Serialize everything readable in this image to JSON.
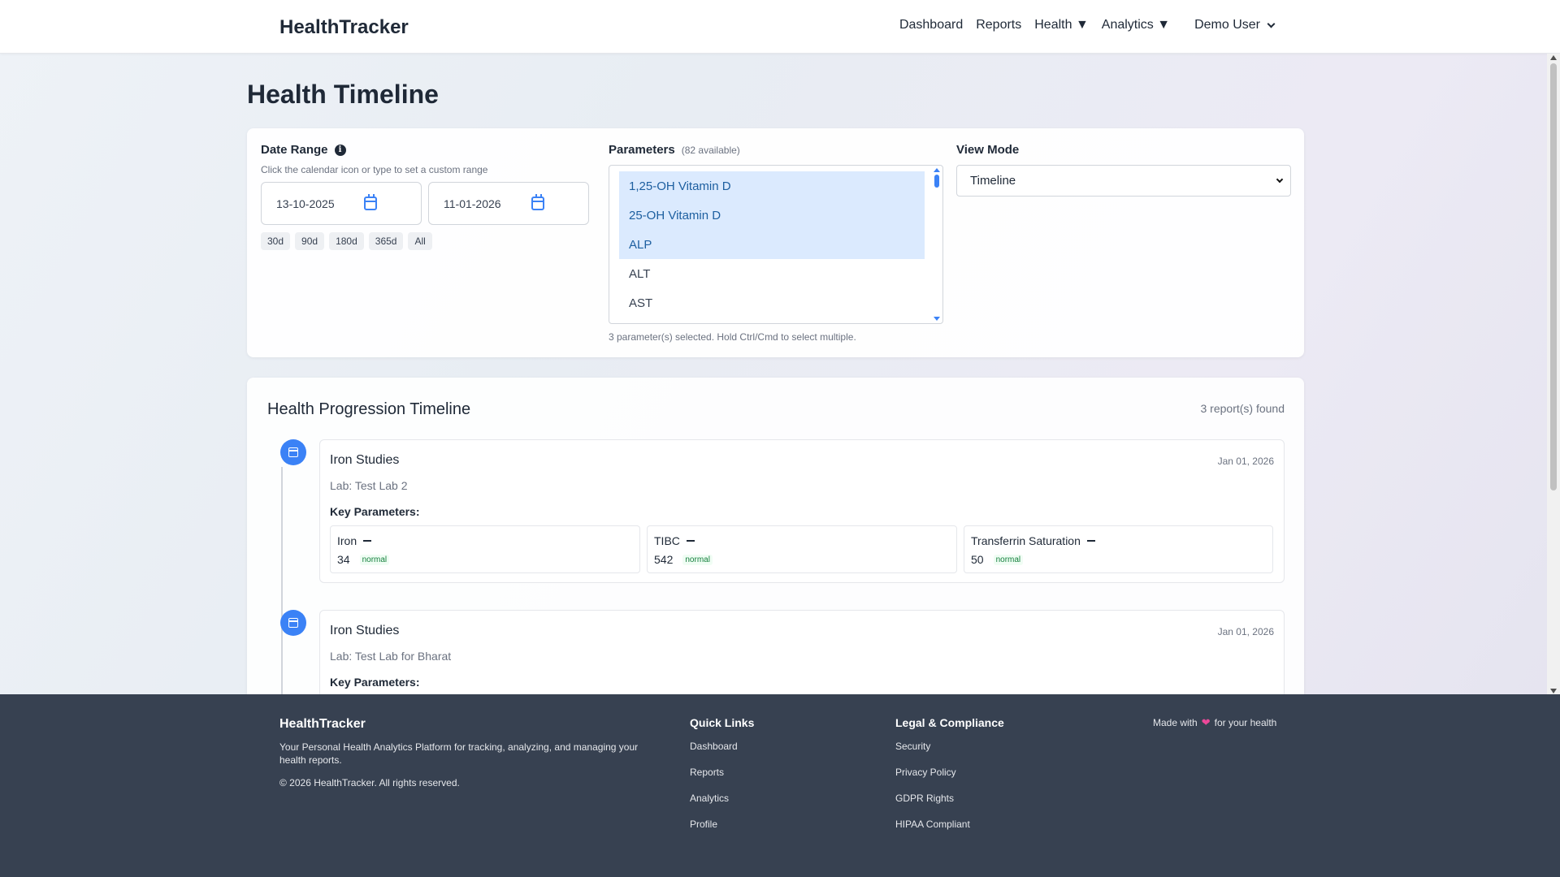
{
  "navbar": {
    "brand": "HealthTracker",
    "links": [
      {
        "label": "Dashboard"
      },
      {
        "label": "Reports"
      },
      {
        "label": "Health ▼"
      },
      {
        "label": "Analytics ▼"
      }
    ],
    "user": "Demo User"
  },
  "page_title": "Health Timeline",
  "filters": {
    "date_range": {
      "label": "Date Range",
      "hint": "Click the calendar icon or type to set a custom range",
      "start": "13-10-2025",
      "end": "11-01-2026",
      "quick": [
        "30d",
        "90d",
        "180d",
        "365d",
        "All"
      ]
    },
    "parameters": {
      "label": "Parameters",
      "available": "(82 available)",
      "items": [
        {
          "name": "1,25-OH Vitamin D",
          "selected": true
        },
        {
          "name": "25-OH Vitamin D",
          "selected": true
        },
        {
          "name": "ALP",
          "selected": true
        },
        {
          "name": "ALT",
          "selected": false
        },
        {
          "name": "AST",
          "selected": false
        }
      ],
      "note": "3 parameter(s) selected. Hold Ctrl/Cmd to select multiple."
    },
    "view_mode": {
      "label": "View Mode",
      "value": "Timeline"
    }
  },
  "timeline": {
    "title": "Health Progression Timeline",
    "count": "3 report(s) found",
    "reports": [
      {
        "title": "Iron Studies",
        "date": "Jan 01, 2026",
        "lab": "Lab: Test Lab 2",
        "key_label": "Key Parameters:",
        "params": [
          {
            "name": "Iron",
            "value": "34",
            "status": "normal"
          },
          {
            "name": "TIBC",
            "value": "542",
            "status": "normal"
          },
          {
            "name": "Transferrin Saturation",
            "value": "50",
            "status": "normal"
          }
        ]
      },
      {
        "title": "Iron Studies",
        "date": "Jan 01, 2026",
        "lab": "Lab: Test Lab for Bharat",
        "key_label": "Key Parameters:"
      }
    ]
  },
  "footer": {
    "brand": "HealthTracker",
    "description": "Your Personal Health Analytics Platform for tracking, analyzing, and managing your health reports.",
    "copyright": "© 2026 HealthTracker. All rights reserved.",
    "quick_links": {
      "heading": "Quick Links",
      "items": [
        "Dashboard",
        "Reports",
        "Analytics",
        "Profile"
      ]
    },
    "legal": {
      "heading": "Legal & Compliance",
      "items": [
        "Security",
        "Privacy Policy",
        "GDPR Rights",
        "HIPAA Compliant"
      ]
    },
    "made_with_prefix": "Made with",
    "made_with_suffix": "for your health"
  },
  "colors": {
    "accent": "#3b82f6",
    "footer_bg": "#374151",
    "selected_bg": "#dbeafe"
  }
}
